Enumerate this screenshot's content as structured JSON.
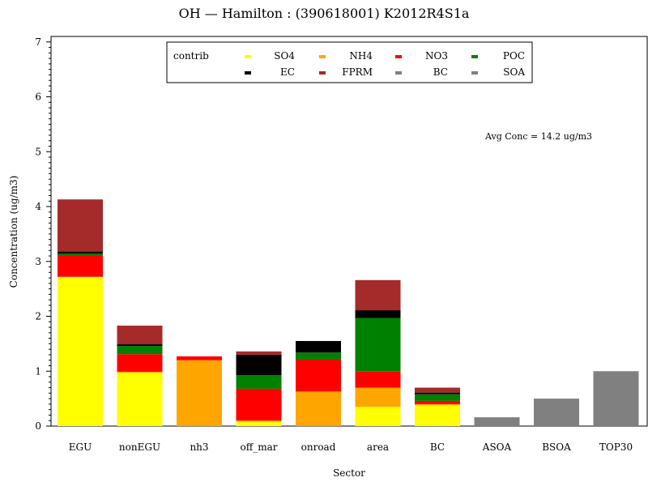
{
  "chart_data": {
    "type": "bar",
    "stacked": true,
    "title": "OH — Hamilton : (390618001) K2012R4S1a",
    "xlabel": "Sector",
    "ylabel": "Concentration (ug/m3)",
    "ylim": [
      0,
      7.1
    ],
    "yticks": [
      "0",
      "1",
      "2",
      "3",
      "4",
      "5",
      "6",
      "7"
    ],
    "legend_title": "contrib",
    "legend_position": "top-center",
    "annotation": "Avg Conc =  14.2 ug/m3",
    "categories": [
      "EGU",
      "nonEGU",
      "nh3",
      "off_mar",
      "onroad",
      "area",
      "BC",
      "ASOA",
      "BSOA",
      "TOP30"
    ],
    "series": [
      {
        "name": "SO4",
        "color": "#ffff00",
        "values": [
          2.72,
          0.97,
          0.0,
          0.08,
          0.0,
          0.35,
          0.38,
          0.0,
          0.0,
          0.0
        ]
      },
      {
        "name": "NH4",
        "color": "#ffa500",
        "values": [
          0.0,
          0.02,
          1.2,
          0.02,
          0.63,
          0.35,
          0.02,
          0.0,
          0.0,
          0.0
        ]
      },
      {
        "name": "NO3",
        "color": "#ff0000",
        "values": [
          0.38,
          0.32,
          0.07,
          0.58,
          0.58,
          0.3,
          0.06,
          0.0,
          0.0,
          0.0
        ]
      },
      {
        "name": "POC",
        "color": "#008000",
        "values": [
          0.04,
          0.15,
          0.0,
          0.25,
          0.13,
          0.97,
          0.12,
          0.0,
          0.0,
          0.0
        ]
      },
      {
        "name": "EC",
        "color": "#000000",
        "values": [
          0.04,
          0.03,
          0.0,
          0.37,
          0.21,
          0.14,
          0.03,
          0.0,
          0.0,
          0.0
        ]
      },
      {
        "name": "FPRM",
        "color": "#a52a2a",
        "values": [
          0.95,
          0.34,
          0.0,
          0.06,
          0.0,
          0.55,
          0.09,
          0.0,
          0.0,
          0.0
        ]
      },
      {
        "name": "BC",
        "color": "#808080",
        "values": [
          0.0,
          0.0,
          0.0,
          0.0,
          0.0,
          0.0,
          0.0,
          0.0,
          0.0,
          0.0
        ]
      },
      {
        "name": "SOA",
        "color": "#808080",
        "values": [
          0.0,
          0.0,
          0.0,
          0.0,
          0.0,
          0.0,
          0.0,
          0.16,
          0.5,
          1.0
        ]
      }
    ]
  }
}
